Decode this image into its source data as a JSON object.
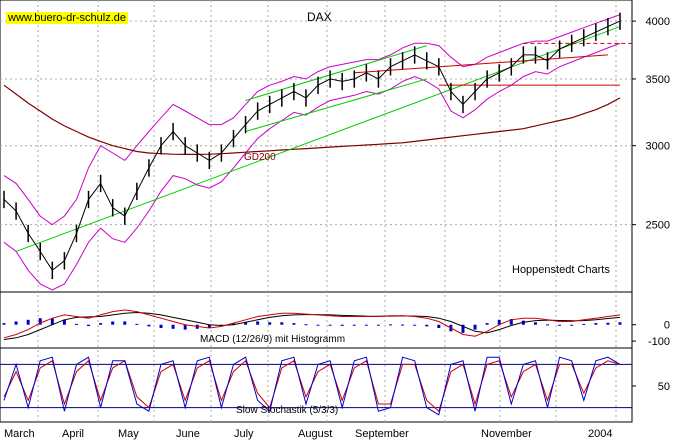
{
  "source": "www.buero-dr-schulz.de",
  "title": "DAX",
  "publisher": "Hoppenstedt Charts",
  "colors": {
    "price": "#000000",
    "bands": "#cc00cc",
    "trend": "#00cc00",
    "ma200": "#800000",
    "resistance": "#cc0000",
    "macd": "#cc0000",
    "signal": "#000000",
    "histogram": "#0000cc",
    "stoch_k": "#0000cc",
    "stoch_d": "#cc0000",
    "grid": "#aaaaaa"
  },
  "chart_data": [
    {
      "type": "line",
      "panel": "price",
      "title": "DAX",
      "yscale": "log",
      "ylim": [
        2200,
        4200
      ],
      "ytick_labels": [
        "4000",
        "3500",
        "3000",
        "2500"
      ],
      "yticks": [
        4000,
        3500,
        3000,
        2500
      ],
      "x_labels": [
        "March",
        "April",
        "May",
        "June",
        "July",
        "August",
        "September",
        "November",
        "2004"
      ],
      "series": [
        {
          "role": "close",
          "values": [
            2650,
            2580,
            2450,
            2350,
            2250,
            2300,
            2450,
            2650,
            2750,
            2600,
            2550,
            2700,
            2850,
            3000,
            3100,
            3000,
            2950,
            2900,
            2950,
            3050,
            3150,
            3250,
            3300,
            3350,
            3400,
            3350,
            3450,
            3500,
            3480,
            3500,
            3550,
            3500,
            3600,
            3650,
            3700,
            3650,
            3600,
            3400,
            3300,
            3400,
            3500,
            3550,
            3600,
            3700,
            3700,
            3650,
            3750,
            3800,
            3850,
            3900,
            3950,
            4000
          ]
        },
        {
          "role": "upper-band",
          "values": [
            2800,
            2750,
            2650,
            2550,
            2500,
            2550,
            2650,
            2850,
            3000,
            2950,
            2900,
            3000,
            3100,
            3200,
            3300,
            3250,
            3200,
            3150,
            3150,
            3200,
            3300,
            3400,
            3450,
            3480,
            3520,
            3500,
            3560,
            3600,
            3620,
            3640,
            3660,
            3660,
            3700,
            3760,
            3800,
            3800,
            3780,
            3680,
            3600,
            3620,
            3680,
            3720,
            3760,
            3800,
            3820,
            3820,
            3860,
            3900,
            3940,
            3980,
            4020,
            4060
          ]
        },
        {
          "role": "lower-band",
          "values": [
            2400,
            2350,
            2250,
            2180,
            2150,
            2180,
            2280,
            2400,
            2480,
            2420,
            2400,
            2480,
            2580,
            2700,
            2800,
            2780,
            2740,
            2720,
            2760,
            2850,
            2950,
            3050,
            3120,
            3180,
            3240,
            3220,
            3280,
            3330,
            3350,
            3370,
            3400,
            3380,
            3420,
            3480,
            3520,
            3480,
            3420,
            3250,
            3200,
            3260,
            3340,
            3400,
            3450,
            3520,
            3560,
            3540,
            3600,
            3640,
            3680,
            3720,
            3760,
            3800
          ]
        },
        {
          "role": "GD200",
          "values": [
            3450,
            3380,
            3310,
            3250,
            3190,
            3140,
            3100,
            3060,
            3030,
            3000,
            2980,
            2960,
            2950,
            2945,
            2942,
            2940,
            2940,
            2942,
            2945,
            2950,
            2955,
            2960,
            2965,
            2970,
            2975,
            2980,
            2985,
            2990,
            2995,
            3000,
            3005,
            3010,
            3015,
            3020,
            3030,
            3040,
            3050,
            3060,
            3070,
            3080,
            3090,
            3100,
            3110,
            3120,
            3140,
            3160,
            3180,
            3200,
            3230,
            3260,
            3300,
            3350
          ]
        }
      ],
      "annotations": [
        "GD200"
      ]
    },
    {
      "type": "bar",
      "panel": "macd",
      "title": "MACD (12/26/9) mit Histogramm",
      "ylim": [
        -130,
        200
      ],
      "yticks": [
        0,
        -100
      ],
      "ytick_labels": [
        "0",
        "-100"
      ],
      "series": [
        {
          "role": "macd",
          "values": [
            -80,
            -60,
            -30,
            10,
            40,
            60,
            50,
            40,
            60,
            80,
            90,
            80,
            60,
            40,
            20,
            0,
            -10,
            -20,
            -10,
            10,
            30,
            50,
            60,
            70,
            70,
            65,
            60,
            55,
            50,
            50,
            50,
            50,
            55,
            55,
            50,
            40,
            20,
            -20,
            -60,
            -70,
            -40,
            0,
            30,
            40,
            40,
            30,
            20,
            20,
            30,
            40,
            50,
            60
          ]
        },
        {
          "role": "signal",
          "values": [
            -90,
            -80,
            -60,
            -30,
            0,
            30,
            45,
            48,
            50,
            60,
            70,
            75,
            70,
            60,
            45,
            30,
            15,
            0,
            -5,
            0,
            15,
            30,
            45,
            55,
            60,
            62,
            62,
            60,
            57,
            55,
            53,
            52,
            53,
            54,
            53,
            50,
            40,
            20,
            -10,
            -40,
            -50,
            -30,
            -5,
            15,
            25,
            28,
            26,
            24,
            25,
            30,
            38,
            45
          ]
        },
        {
          "role": "histogram",
          "values": [
            10,
            20,
            30,
            40,
            40,
            30,
            5,
            -8,
            10,
            20,
            20,
            5,
            -10,
            -20,
            -25,
            -30,
            -25,
            -20,
            -5,
            10,
            15,
            20,
            15,
            15,
            10,
            3,
            -2,
            -5,
            -7,
            -5,
            -3,
            -2,
            2,
            1,
            -3,
            -10,
            -20,
            -40,
            -50,
            -30,
            10,
            30,
            35,
            25,
            15,
            2,
            -6,
            -4,
            5,
            10,
            12,
            15
          ]
        }
      ]
    },
    {
      "type": "line",
      "panel": "stochastic",
      "title": "Slow Stochastik (5/3/3)",
      "ylim": [
        0,
        100
      ],
      "yticks": [
        50
      ],
      "ytick_labels": [
        "50"
      ],
      "reference_lines": [
        80,
        20
      ],
      "series": [
        {
          "role": "%K",
          "values": [
            30,
            80,
            20,
            85,
            90,
            15,
            80,
            90,
            20,
            85,
            85,
            25,
            15,
            80,
            85,
            20,
            85,
            90,
            20,
            80,
            90,
            30,
            15,
            85,
            90,
            25,
            80,
            85,
            20,
            85,
            90,
            15,
            20,
            90,
            85,
            20,
            10,
            80,
            85,
            15,
            90,
            90,
            25,
            80,
            85,
            20,
            90,
            85,
            30,
            85,
            90,
            80
          ]
        },
        {
          "role": "%D",
          "values": [
            35,
            70,
            30,
            75,
            85,
            25,
            70,
            85,
            30,
            75,
            85,
            35,
            20,
            70,
            80,
            30,
            75,
            85,
            30,
            70,
            85,
            40,
            20,
            75,
            85,
            35,
            70,
            80,
            30,
            75,
            85,
            25,
            25,
            80,
            80,
            30,
            15,
            70,
            80,
            25,
            80,
            85,
            35,
            70,
            80,
            30,
            80,
            80,
            40,
            75,
            85,
            80
          ]
        }
      ]
    }
  ]
}
